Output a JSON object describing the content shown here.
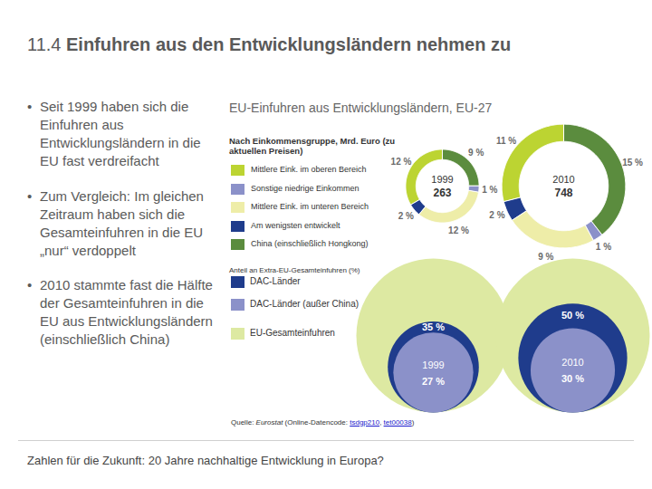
{
  "slide": {
    "number": "11.4",
    "title": "Einfuhren aus den Entwicklungsländern nehmen zu",
    "bullets": [
      "Seit 1999 haben sich die Einfuhren aus Entwicklungsländern in die EU fast verdreifacht",
      "Zum Vergleich: Im gleichen Zeitraum haben sich die Gesamteinfuhren in die EU „nur“ verdoppelt",
      "2010 stammte fast die Hälfte der Gesamteinfuhren in die EU aus Entwicklungsländern (einschließlich China)"
    ],
    "source": {
      "prefix": "Quelle: ",
      "publisher": "Eurostat",
      "text": " (Online-Datencode: ",
      "codes": [
        "tsdgp210",
        "tet00038"
      ],
      "separator": ", ",
      "suffix": ")"
    },
    "footer": "Zahlen für die Zukunft: 20 Jahre nachhaltige Entwicklung in Europa?"
  },
  "chart_data": [
    {
      "type": "donut",
      "title": "EU-Einfuhren aus Entwicklungsländern, EU-27",
      "subtitle": "Nach Einkommensgruppe, Mrd. Euro (zu aktuellen Preisen)",
      "categories": [
        "Mittlere Eink. im oberen Bereich",
        "Sonstige niedrige Einkommen",
        "Mittlere Eink. im unteren Bereich",
        "Am wenigsten entwickelt",
        "China (einschließlich Hongkong)"
      ],
      "colors": [
        "#bcd432",
        "#8b91c9",
        "#eeeda8",
        "#1f3c8c",
        "#5b8c3e"
      ],
      "data_labels": true,
      "rings": [
        {
          "name": "1999",
          "total": 263,
          "values": [
            12,
            1,
            12,
            2,
            9
          ],
          "value_labels": [
            "12 %",
            "1 %",
            "12 %",
            "2 %",
            "9 %"
          ]
        },
        {
          "name": "2010",
          "total": 748,
          "values": [
            11,
            1,
            9,
            2,
            15
          ],
          "value_labels": [
            "11 %",
            "1 %",
            "9 %",
            "2 %",
            "15 %"
          ]
        }
      ]
    },
    {
      "type": "nested_circles",
      "title": "Anteil an Extra-EU-Gesamteinfuhren (%)",
      "categories": [
        "1999",
        "2010"
      ],
      "data_labels": true,
      "series": [
        {
          "name": "DAC-Länder",
          "color": "#1f3c8c",
          "values": [
            35,
            50
          ],
          "value_labels": [
            "35 %",
            "50 %"
          ]
        },
        {
          "name": "DAC-Länder (außer China)",
          "color": "#8b91c9",
          "values": [
            27,
            30
          ],
          "value_labels": [
            "27 %",
            "30 %"
          ]
        },
        {
          "name": "EU-Gesamteinfuhren",
          "color": "#dde9a2",
          "values": [
            100,
            100
          ]
        }
      ]
    }
  ]
}
